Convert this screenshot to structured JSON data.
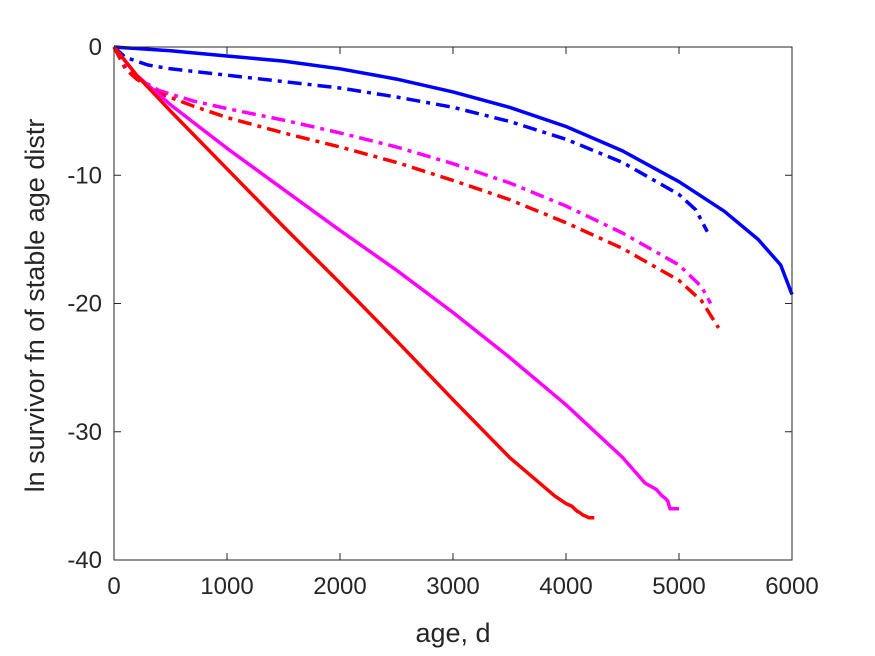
{
  "chart_data": {
    "type": "line",
    "title": "",
    "xlabel": "age, d",
    "ylabel": "ln survivor fn of stable age distr",
    "xlim": [
      0,
      6000
    ],
    "ylim": [
      -40,
      0
    ],
    "xticks": [
      0,
      1000,
      2000,
      3000,
      4000,
      5000,
      6000
    ],
    "yticks": [
      -40,
      -30,
      -20,
      -10,
      0
    ],
    "xtick_labels": [
      "0",
      "1000",
      "2000",
      "3000",
      "4000",
      "5000",
      "6000"
    ],
    "ytick_labels": [
      "-40",
      "-30",
      "-20",
      "-10",
      "0"
    ],
    "grid": false,
    "legend": "none",
    "series": [
      {
        "color": "#0000ff",
        "style": "solid",
        "x": [
          0,
          500,
          1000,
          1500,
          2000,
          2500,
          3000,
          3500,
          4000,
          4500,
          5000,
          5400,
          5700,
          5900,
          6000
        ],
        "y": [
          0,
          -0.3,
          -0.7,
          -1.1,
          -1.7,
          -2.5,
          -3.5,
          -4.7,
          -6.2,
          -8.1,
          -10.5,
          -12.8,
          -15.0,
          -17.0,
          -19.3
        ]
      },
      {
        "color": "#0000ff",
        "style": "dashdot",
        "x": [
          0,
          100,
          300,
          500,
          1000,
          1500,
          2000,
          2500,
          3000,
          3500,
          4000,
          4500,
          5000,
          5150,
          5250
        ],
        "y": [
          0,
          -0.8,
          -1.4,
          -1.7,
          -2.2,
          -2.7,
          -3.2,
          -3.9,
          -4.7,
          -5.8,
          -7.2,
          -9.0,
          -11.5,
          -12.7,
          -14.4
        ]
      },
      {
        "color": "#ff00ff",
        "style": "dashdot",
        "x": [
          0,
          100,
          200,
          400,
          700,
          1000,
          1500,
          2000,
          2500,
          3000,
          3500,
          4000,
          4500,
          5000,
          5200,
          5280
        ],
        "y": [
          0,
          -1.5,
          -2.4,
          -3.4,
          -4.2,
          -4.8,
          -5.7,
          -6.7,
          -7.8,
          -9.1,
          -10.6,
          -12.4,
          -14.5,
          -17.0,
          -18.7,
          -20.0
        ]
      },
      {
        "color": "#ff0000",
        "style": "dashdot",
        "x": [
          0,
          100,
          200,
          400,
          700,
          1000,
          1500,
          2000,
          2500,
          3000,
          3500,
          4000,
          4500,
          5000,
          5200,
          5350
        ],
        "y": [
          0,
          -1.7,
          -2.5,
          -3.6,
          -4.6,
          -5.5,
          -6.7,
          -7.8,
          -9.0,
          -10.4,
          -11.9,
          -13.7,
          -15.7,
          -18.2,
          -19.8,
          -21.9
        ]
      },
      {
        "color": "#ff00ff",
        "style": "solid",
        "x": [
          0,
          200,
          500,
          1000,
          1500,
          2000,
          2500,
          3000,
          3500,
          4000,
          4500,
          4700,
          4800,
          4850,
          4880,
          4900,
          4920,
          4950,
          5000
        ],
        "y": [
          0,
          -2.2,
          -4.5,
          -7.9,
          -11.1,
          -14.3,
          -17.4,
          -20.7,
          -24.2,
          -27.9,
          -32.0,
          -34.0,
          -34.5,
          -35.0,
          -35.2,
          -35.4,
          -36.0,
          -36.0,
          -36.0
        ]
      },
      {
        "color": "#ff0000",
        "style": "solid",
        "x": [
          0,
          200,
          500,
          1000,
          1500,
          2000,
          2500,
          3000,
          3500,
          3900,
          4000,
          4050,
          4100,
          4120,
          4150,
          4180,
          4200,
          4250
        ],
        "y": [
          0,
          -2.2,
          -5.0,
          -9.5,
          -14.0,
          -18.4,
          -22.9,
          -27.5,
          -32.0,
          -35.0,
          -35.6,
          -35.8,
          -36.2,
          -36.3,
          -36.5,
          -36.6,
          -36.7,
          -36.7
        ]
      }
    ]
  }
}
